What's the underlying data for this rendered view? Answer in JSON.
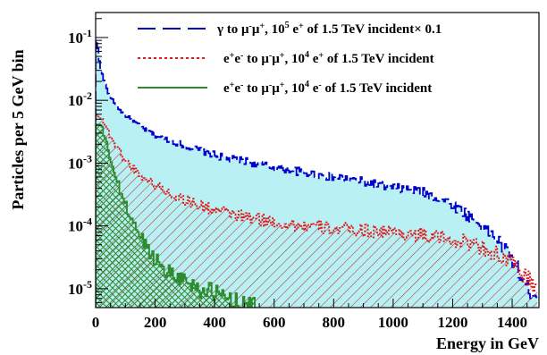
{
  "chart_data": {
    "type": "step-histogram",
    "xlabel": "Energy in GeV",
    "ylabel": "Particles per 5 GeV bin",
    "xlim": [
      0,
      1490
    ],
    "ylim": [
      5e-06,
      0.25
    ],
    "yscale": "log",
    "bin_width": 5,
    "grid": false,
    "legend_position": "top-right",
    "x_ticks": [
      0,
      200,
      400,
      600,
      800,
      1000,
      1200,
      1400
    ],
    "x_tick_labels": [
      "0",
      "200",
      "400",
      "600",
      "800",
      "1000",
      "1200",
      "1400"
    ],
    "y_ticks": [
      1e-05,
      0.0001,
      0.001,
      0.01,
      0.1
    ],
    "y_tick_labels": [
      {
        "base": "10",
        "exp": "-5"
      },
      {
        "base": "10",
        "exp": "-4"
      },
      {
        "base": "10",
        "exp": "-3"
      },
      {
        "base": "10",
        "exp": "-2"
      },
      {
        "base": "10",
        "exp": "-1"
      }
    ],
    "series": [
      {
        "name": "γ to μ⁻μ⁺, 10⁵ e⁺ of 1.5 TeV incident× 0.1",
        "legend": {
          "p1": "γ to μ",
          "s1": "-",
          "p2": "μ",
          "s2": "+",
          "p3": ", 10",
          "s3": "5",
          "p4": " e",
          "s4": "+",
          "p5": " of 1.5 TeV incident× 0.1"
        },
        "color": "#0000cc",
        "line_style": "long-dash",
        "fill": "#b8f0f4",
        "fill_style": "solid",
        "x": [
          5,
          10,
          15,
          20,
          30,
          40,
          60,
          80,
          100,
          130,
          160,
          200,
          250,
          300,
          350,
          400,
          450,
          500,
          550,
          600,
          650,
          700,
          750,
          800,
          850,
          900,
          950,
          1000,
          1050,
          1100,
          1150,
          1200,
          1250,
          1300,
          1350,
          1400,
          1450,
          1485
        ],
        "y": [
          0.09,
          0.05,
          0.038,
          0.028,
          0.019,
          0.014,
          0.0095,
          0.0072,
          0.0058,
          0.0045,
          0.0036,
          0.0028,
          0.0023,
          0.0019,
          0.0016,
          0.00135,
          0.00115,
          0.0011,
          0.00095,
          0.00085,
          0.0008,
          0.0007,
          0.00065,
          0.0006,
          0.00055,
          0.0005,
          0.00045,
          0.0004,
          0.00038,
          0.00034,
          0.00028,
          0.00022,
          0.00015,
          0.0001,
          6e-05,
          3e-05,
          1e-05,
          8e-06
        ]
      },
      {
        "name": "e⁺e⁻ to μ⁻μ⁺, 10⁴ e⁺ of 1.5 TeV incident",
        "legend": {
          "p1": "e",
          "s1": "+",
          "p2": "e",
          "s2": "-",
          "p3": " to μ",
          "s3": "-",
          "p4": "μ",
          "s4": "+",
          "p5": ", 10",
          "s5": "4",
          "p6": " e",
          "s6": "+",
          "p7": " of 1.5 TeV incident"
        },
        "color": "#e01818",
        "line_style": "dotted",
        "fill": "#b22222",
        "fill_style": "hatch-diagonal",
        "x": [
          10,
          20,
          30,
          40,
          60,
          80,
          100,
          130,
          160,
          200,
          250,
          300,
          350,
          400,
          450,
          500,
          550,
          600,
          650,
          700,
          750,
          800,
          850,
          900,
          950,
          1000,
          1050,
          1100,
          1150,
          1200,
          1250,
          1300,
          1350,
          1400,
          1450,
          1485
        ],
        "y": [
          0.0058,
          0.0052,
          0.0042,
          0.0032,
          0.0022,
          0.0015,
          0.0011,
          0.0008,
          0.0006,
          0.00045,
          0.00033,
          0.00026,
          0.00021,
          0.00018,
          0.000155,
          0.00014,
          0.000125,
          0.000115,
          0.000105,
          0.0001,
          9.5e-05,
          9e-05,
          8.8e-05,
          8.5e-05,
          8.2e-05,
          8e-05,
          7.5e-05,
          7e-05,
          6.5e-05,
          6e-05,
          5.5e-05,
          4.5e-05,
          3.5e-05,
          2.5e-05,
          1.5e-05,
          1e-05
        ]
      },
      {
        "name": "e⁺e⁻ to μ⁻μ⁺, 10⁴ e⁻ of 1.5 TeV incident",
        "legend": {
          "p1": "e",
          "s1": "+",
          "p2": "e",
          "s2": "-",
          "p3": " to μ",
          "s3": "-",
          "p4": "μ",
          "s4": "+",
          "p5": ", 10",
          "s5": "4",
          "p6": " e",
          "s6": "-",
          "p7": " of 1.5 TeV incident"
        },
        "color": "#2e8b2e",
        "line_style": "solid",
        "fill": "#2e8b2e",
        "fill_style": "crosshatch",
        "x": [
          10,
          15,
          20,
          25,
          30,
          40,
          50,
          60,
          80,
          100,
          120,
          150,
          180,
          200,
          250,
          300,
          350,
          400,
          450,
          500,
          540
        ],
        "y": [
          0.004,
          0.0042,
          0.0038,
          0.0032,
          0.0026,
          0.0018,
          0.0012,
          0.0008,
          0.0004,
          0.00022,
          0.00013,
          7e-05,
          4e-05,
          3e-05,
          1.8e-05,
          1.4e-05,
          1e-05,
          8.5e-06,
          7e-06,
          5.5e-06,
          5e-06
        ]
      }
    ]
  }
}
